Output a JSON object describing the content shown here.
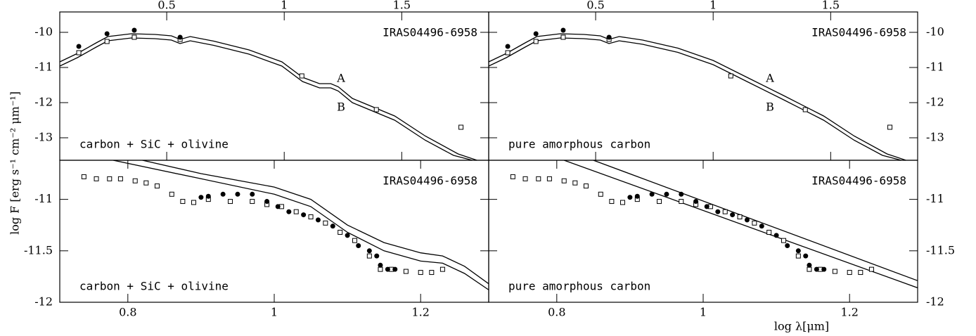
{
  "ylabel": "log F [erg s⁻¹ cm⁻² μm⁻¹]",
  "xlabel": "log λ[μm]",
  "chart_data": [
    {
      "type": "line",
      "object": "IRAS04496-6958",
      "model": "carbon + SiC + olivine",
      "xlim": [
        0.045,
        1.87
      ],
      "ylim": [
        -13.64,
        -9.42
      ],
      "xticks": [
        0.5,
        1,
        1.5
      ],
      "yticks": [
        -10,
        -11,
        -12,
        -13
      ],
      "xaxis_position": "top",
      "yaxis_position": "left",
      "series": [
        {
          "name": "A",
          "marker": "line",
          "color": "#000000",
          "x": [
            0.045,
            0.12,
            0.2,
            0.25,
            0.35,
            0.45,
            0.52,
            0.557,
            0.6,
            0.7,
            0.85,
            0.99,
            1.078,
            1.15,
            1.198,
            1.23,
            1.29,
            1.47,
            1.6,
            1.74,
            1.82
          ],
          "values": [
            -10.84,
            -10.6,
            -10.3,
            -10.12,
            -10.04,
            -10.06,
            -10.1,
            -10.2,
            -10.12,
            -10.25,
            -10.5,
            -10.84,
            -11.28,
            -11.46,
            -11.46,
            -11.55,
            -11.88,
            -12.38,
            -12.95,
            -13.46,
            -13.64
          ]
        },
        {
          "name": "B",
          "marker": "line",
          "color": "#000000",
          "x": [
            0.045,
            0.12,
            0.2,
            0.25,
            0.35,
            0.45,
            0.52,
            0.557,
            0.6,
            0.7,
            0.85,
            0.99,
            1.078,
            1.15,
            1.198,
            1.23,
            1.29,
            1.47,
            1.6,
            1.72,
            1.8
          ],
          "values": [
            -10.96,
            -10.72,
            -10.42,
            -10.24,
            -10.16,
            -10.18,
            -10.22,
            -10.32,
            -10.24,
            -10.37,
            -10.62,
            -10.96,
            -11.4,
            -11.58,
            -11.58,
            -11.67,
            -12.0,
            -12.5,
            -13.07,
            -13.5,
            -13.64
          ]
        },
        {
          "marker": "square",
          "color": "#000000",
          "x": [
            0.126,
            0.246,
            0.362,
            0.557,
            1.075,
            1.392,
            1.752
          ],
          "values": [
            -10.58,
            -10.26,
            -10.14,
            -10.2,
            -11.24,
            -12.2,
            -12.7
          ]
        },
        {
          "marker": "dot",
          "color": "#000000",
          "x": [
            0.126,
            0.246,
            0.362,
            0.557
          ],
          "values": [
            -10.4,
            -10.04,
            -9.94,
            -10.14
          ]
        }
      ]
    },
    {
      "type": "line",
      "object": "IRAS04496-6958",
      "model": "pure amorphous carbon",
      "xlim": [
        0.045,
        1.87
      ],
      "ylim": [
        -13.64,
        -9.42
      ],
      "xticks": [
        0.5,
        1,
        1.5
      ],
      "yticks": [
        -10,
        -11,
        -12,
        -13
      ],
      "xaxis_position": "top",
      "yaxis_position": "right",
      "series": [
        {
          "name": "A",
          "marker": "line",
          "color": "#000000",
          "x": [
            0.045,
            0.12,
            0.2,
            0.25,
            0.35,
            0.45,
            0.52,
            0.557,
            0.6,
            0.7,
            0.85,
            1.0,
            1.15,
            1.3,
            1.47,
            1.6,
            1.74,
            1.82
          ],
          "values": [
            -10.84,
            -10.6,
            -10.3,
            -10.12,
            -10.04,
            -10.06,
            -10.1,
            -10.2,
            -10.12,
            -10.22,
            -10.45,
            -10.8,
            -11.3,
            -11.8,
            -12.38,
            -12.95,
            -13.46,
            -13.64
          ]
        },
        {
          "name": "B",
          "marker": "line",
          "color": "#000000",
          "x": [
            0.045,
            0.12,
            0.2,
            0.25,
            0.35,
            0.45,
            0.52,
            0.557,
            0.6,
            0.7,
            0.85,
            1.0,
            1.15,
            1.3,
            1.47,
            1.6,
            1.72,
            1.8
          ],
          "values": [
            -10.96,
            -10.72,
            -10.42,
            -10.24,
            -10.16,
            -10.18,
            -10.22,
            -10.32,
            -10.24,
            -10.34,
            -10.57,
            -10.92,
            -11.42,
            -11.92,
            -12.5,
            -13.07,
            -13.5,
            -13.64
          ]
        },
        {
          "marker": "square",
          "color": "#000000",
          "x": [
            0.126,
            0.246,
            0.362,
            0.557,
            1.075,
            1.392,
            1.752
          ],
          "values": [
            -10.58,
            -10.26,
            -10.14,
            -10.2,
            -11.24,
            -12.2,
            -12.7
          ]
        },
        {
          "marker": "dot",
          "color": "#000000",
          "x": [
            0.126,
            0.246,
            0.362,
            0.557
          ],
          "values": [
            -10.4,
            -10.04,
            -9.94,
            -10.14
          ]
        }
      ]
    },
    {
      "type": "line",
      "object": "IRAS04496-6958",
      "model": "carbon + SiC + olivine",
      "xlim": [
        0.707,
        1.293
      ],
      "ylim": [
        -12,
        -10.62
      ],
      "xticks": [
        0.8,
        1,
        1.2
      ],
      "yticks": [
        -11,
        -11.5,
        -12
      ],
      "xaxis_position": "bottom",
      "yaxis_position": "left",
      "series": [
        {
          "marker": "line",
          "color": "#000000",
          "x": [
            0.82,
            0.9,
            1.0,
            1.05,
            1.1,
            1.15,
            1.2,
            1.23,
            1.26,
            1.293
          ],
          "values": [
            -10.62,
            -10.75,
            -10.88,
            -11.0,
            -11.25,
            -11.42,
            -11.52,
            -11.55,
            -11.65,
            -11.82
          ]
        },
        {
          "marker": "line",
          "color": "#000000",
          "x": [
            0.78,
            0.9,
            1.0,
            1.05,
            1.1,
            1.15,
            1.2,
            1.23,
            1.26,
            1.293
          ],
          "values": [
            -10.62,
            -10.8,
            -10.95,
            -11.07,
            -11.32,
            -11.5,
            -11.6,
            -11.62,
            -11.72,
            -11.88
          ]
        },
        {
          "marker": "square",
          "color": "#000000",
          "x": [
            0.74,
            0.757,
            0.775,
            0.79,
            0.81,
            0.825,
            0.84,
            0.86,
            0.875,
            0.89,
            0.91,
            0.94,
            0.97,
            0.99,
            1.01,
            1.03,
            1.05,
            1.07,
            1.09,
            1.11,
            1.13,
            1.145,
            1.16,
            1.18,
            1.2,
            1.215,
            1.23
          ],
          "values": [
            -10.78,
            -10.8,
            -10.8,
            -10.8,
            -10.82,
            -10.84,
            -10.87,
            -10.95,
            -11.02,
            -11.03,
            -11.0,
            -11.02,
            -11.02,
            -11.05,
            -11.07,
            -11.12,
            -11.17,
            -11.23,
            -11.32,
            -11.4,
            -11.55,
            -11.68,
            -11.68,
            -11.7,
            -11.71,
            -11.71,
            -11.68
          ]
        },
        {
          "marker": "dot",
          "color": "#000000",
          "x": [
            0.9,
            0.91,
            0.93,
            0.95,
            0.97,
            0.99,
            1.005,
            1.02,
            1.04,
            1.06,
            1.08,
            1.1,
            1.115,
            1.13,
            1.14,
            1.145,
            1.155,
            1.165
          ],
          "values": [
            -10.98,
            -10.97,
            -10.95,
            -10.95,
            -10.95,
            -11.02,
            -11.07,
            -11.12,
            -11.15,
            -11.2,
            -11.26,
            -11.35,
            -11.45,
            -11.5,
            -11.55,
            -11.64,
            -11.68,
            -11.68
          ]
        }
      ]
    },
    {
      "type": "line",
      "object": "IRAS04496-6958",
      "model": "pure amorphous carbon",
      "xlim": [
        0.707,
        1.293
      ],
      "ylim": [
        -12,
        -10.62
      ],
      "xticks": [
        0.8,
        1,
        1.2
      ],
      "yticks": [
        -11,
        -11.5,
        -12
      ],
      "xaxis_position": "bottom",
      "yaxis_position": "right",
      "series": [
        {
          "marker": "line",
          "color": "#000000",
          "x": [
            0.85,
            1.293
          ],
          "values": [
            -10.62,
            -11.79
          ]
        },
        {
          "marker": "line",
          "color": "#000000",
          "x": [
            0.81,
            1.293
          ],
          "values": [
            -10.62,
            -11.86
          ]
        },
        {
          "marker": "square",
          "color": "#000000",
          "x": [
            0.74,
            0.757,
            0.775,
            0.79,
            0.81,
            0.825,
            0.84,
            0.86,
            0.875,
            0.89,
            0.91,
            0.94,
            0.97,
            0.99,
            1.01,
            1.03,
            1.05,
            1.07,
            1.09,
            1.11,
            1.13,
            1.145,
            1.16,
            1.18,
            1.2,
            1.215,
            1.23
          ],
          "values": [
            -10.78,
            -10.8,
            -10.8,
            -10.8,
            -10.82,
            -10.84,
            -10.87,
            -10.95,
            -11.02,
            -11.03,
            -11.0,
            -11.02,
            -11.02,
            -11.05,
            -11.07,
            -11.12,
            -11.17,
            -11.23,
            -11.32,
            -11.4,
            -11.55,
            -11.68,
            -11.68,
            -11.7,
            -11.71,
            -11.71,
            -11.68
          ]
        },
        {
          "marker": "dot",
          "color": "#000000",
          "x": [
            0.9,
            0.91,
            0.93,
            0.95,
            0.97,
            0.99,
            1.005,
            1.02,
            1.04,
            1.06,
            1.08,
            1.1,
            1.115,
            1.13,
            1.14,
            1.145,
            1.155,
            1.165
          ],
          "values": [
            -10.98,
            -10.97,
            -10.95,
            -10.95,
            -10.95,
            -11.02,
            -11.07,
            -11.12,
            -11.15,
            -11.2,
            -11.26,
            -11.35,
            -11.45,
            -11.5,
            -11.55,
            -11.64,
            -11.68,
            -11.68
          ]
        }
      ]
    }
  ]
}
